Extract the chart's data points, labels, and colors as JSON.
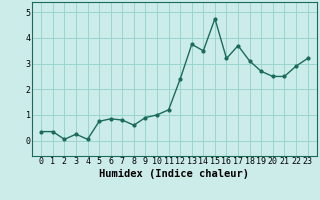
{
  "x": [
    0,
    1,
    2,
    3,
    4,
    5,
    6,
    7,
    8,
    9,
    10,
    11,
    12,
    13,
    14,
    15,
    16,
    17,
    18,
    19,
    20,
    21,
    22,
    23
  ],
  "y": [
    0.35,
    0.35,
    0.05,
    0.25,
    0.05,
    0.75,
    0.85,
    0.8,
    0.6,
    0.9,
    1.0,
    1.2,
    2.4,
    3.75,
    3.5,
    4.75,
    3.2,
    3.7,
    3.1,
    2.7,
    2.5,
    2.5,
    2.9,
    3.2
  ],
  "line_color": "#1a6b5a",
  "marker": "o",
  "marker_size": 2.0,
  "line_width": 1.0,
  "bg_color": "#ccecea",
  "grid_color": "#99d5d0",
  "xlabel": "Humidex (Indice chaleur)",
  "xlabel_fontsize": 7.5,
  "ylim": [
    -0.6,
    5.4
  ],
  "xlim": [
    -0.8,
    23.8
  ],
  "yticks": [
    0,
    1,
    2,
    3,
    4,
    5
  ],
  "ytick_labels": [
    "0",
    "1",
    "2",
    "3",
    "4",
    "5"
  ],
  "xtick_labels": [
    "0",
    "1",
    "2",
    "3",
    "4",
    "5",
    "6",
    "7",
    "8",
    "9",
    "10",
    "11",
    "12",
    "13",
    "14",
    "15",
    "16",
    "17",
    "18",
    "19",
    "20",
    "21",
    "22",
    "23"
  ],
  "tick_fontsize": 6.0,
  "ylabel_fontsize": 6.0
}
